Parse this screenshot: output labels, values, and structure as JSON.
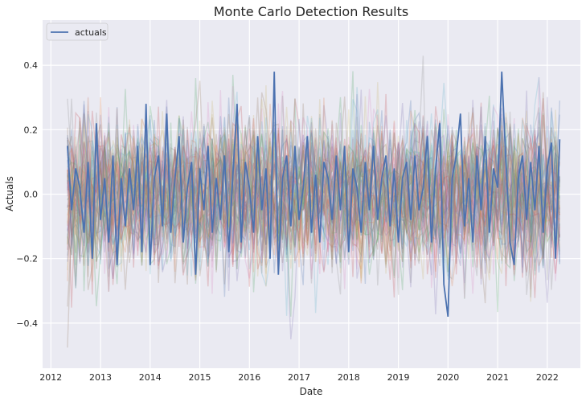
{
  "chart_data": {
    "type": "line",
    "title": "Monte Carlo Detection Results",
    "xlabel": "Date",
    "ylabel": "Actuals",
    "x_range": [
      "2012-05",
      "2022-04"
    ],
    "xlim": [
      "2011-11",
      "2022-09"
    ],
    "ylim": [
      -0.54,
      0.54
    ],
    "x_ticks": [
      "2012",
      "2013",
      "2014",
      "2015",
      "2016",
      "2017",
      "2018",
      "2019",
      "2020",
      "2021",
      "2022"
    ],
    "y_ticks": [
      -0.4,
      -0.2,
      0.0,
      0.2,
      0.4
    ],
    "y_tick_labels": [
      "−0.4",
      "−0.2",
      "0.0",
      "0.2",
      "0.4"
    ],
    "grid": true,
    "legend_position": "top-left",
    "background": "#eaeaf2",
    "simulation_count": 60,
    "simulation_opacity": 0.25,
    "simulation_palette": [
      "#4c72b0",
      "#dd8452",
      "#55a868",
      "#c44e52",
      "#8172b3",
      "#937860",
      "#da8bc3",
      "#8c8c8c",
      "#ccb974",
      "#64b5cd"
    ],
    "series": [
      {
        "name": "actuals",
        "color": "#4c72b0",
        "x": [
          "2012-05",
          "2012-06",
          "2012-07",
          "2012-08",
          "2012-09",
          "2012-10",
          "2012-11",
          "2012-12",
          "2013-01",
          "2013-02",
          "2013-03",
          "2013-04",
          "2013-05",
          "2013-06",
          "2013-07",
          "2013-08",
          "2013-09",
          "2013-10",
          "2013-11",
          "2013-12",
          "2014-01",
          "2014-02",
          "2014-03",
          "2014-04",
          "2014-05",
          "2014-06",
          "2014-07",
          "2014-08",
          "2014-09",
          "2014-10",
          "2014-11",
          "2014-12",
          "2015-01",
          "2015-02",
          "2015-03",
          "2015-04",
          "2015-05",
          "2015-06",
          "2015-07",
          "2015-08",
          "2015-09",
          "2015-10",
          "2015-11",
          "2015-12",
          "2016-01",
          "2016-02",
          "2016-03",
          "2016-04",
          "2016-05",
          "2016-06",
          "2016-07",
          "2016-08",
          "2016-09",
          "2016-10",
          "2016-11",
          "2016-12",
          "2017-01",
          "2017-02",
          "2017-03",
          "2017-04",
          "2017-05",
          "2017-06",
          "2017-07",
          "2017-08",
          "2017-09",
          "2017-10",
          "2017-11",
          "2017-12",
          "2018-01",
          "2018-02",
          "2018-03",
          "2018-04",
          "2018-05",
          "2018-06",
          "2018-07",
          "2018-08",
          "2018-09",
          "2018-10",
          "2018-11",
          "2018-12",
          "2019-01",
          "2019-02",
          "2019-03",
          "2019-04",
          "2019-05",
          "2019-06",
          "2019-07",
          "2019-08",
          "2019-09",
          "2019-10",
          "2019-11",
          "2019-12",
          "2020-01",
          "2020-02",
          "2020-03",
          "2020-04",
          "2020-05",
          "2020-06",
          "2020-07",
          "2020-08",
          "2020-09",
          "2020-10",
          "2020-11",
          "2020-12",
          "2021-01",
          "2021-02",
          "2021-03",
          "2021-04",
          "2021-05",
          "2021-06",
          "2021-07",
          "2021-08",
          "2021-09",
          "2021-10",
          "2021-11",
          "2021-12",
          "2022-01",
          "2022-02",
          "2022-03",
          "2022-04"
        ],
        "values": [
          0.15,
          -0.05,
          0.08,
          0.02,
          -0.12,
          0.1,
          -0.2,
          0.22,
          -0.08,
          0.05,
          -0.15,
          0.12,
          -0.22,
          0.05,
          -0.1,
          0.08,
          -0.05,
          0.15,
          -0.18,
          0.28,
          -0.22,
          0.05,
          0.12,
          -0.1,
          0.25,
          -0.12,
          0.05,
          0.18,
          -0.15,
          0.02,
          0.1,
          -0.25,
          0.08,
          -0.05,
          0.15,
          -0.12,
          0.05,
          -0.08,
          0.12,
          -0.18,
          0.06,
          0.28,
          -0.15,
          0.1,
          0.02,
          -0.12,
          0.18,
          -0.05,
          0.08,
          -0.2,
          0.38,
          -0.25,
          0.05,
          0.12,
          -0.1,
          0.15,
          -0.08,
          0.02,
          0.18,
          -0.12,
          0.06,
          -0.15,
          0.1,
          0.05,
          -0.08,
          0.12,
          -0.05,
          0.15,
          -0.18,
          0.08,
          0.02,
          -0.12,
          0.1,
          -0.05,
          0.15,
          -0.08,
          0.05,
          0.12,
          -0.1,
          0.08,
          -0.15,
          0.05,
          0.1,
          -0.08,
          0.12,
          -0.05,
          0.02,
          0.18,
          -0.15,
          0.08,
          0.22,
          -0.28,
          -0.38,
          0.05,
          0.12,
          0.25,
          -0.1,
          0.05,
          -0.15,
          0.12,
          -0.05,
          0.18,
          -0.12,
          0.08,
          0.02,
          0.38,
          0.1,
          -0.15,
          -0.22,
          0.05,
          0.12,
          -0.08,
          0.1,
          -0.05,
          0.15,
          -0.12,
          0.08,
          0.16,
          -0.2,
          0.17
        ]
      }
    ]
  }
}
